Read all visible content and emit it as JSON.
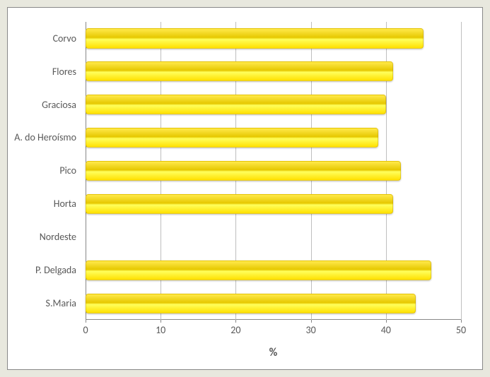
{
  "chart": {
    "type": "bar-horizontal",
    "background_color": "#ffffff",
    "outer_background": "#e8e8de",
    "grid_color": "#bfbfbf",
    "axis_color": "#888888",
    "label_color": "#595959",
    "tick_fontsize": 14,
    "xlabel": "%",
    "xlabel_fontsize": 16,
    "xlim": [
      0,
      50
    ],
    "xtick_step": 10,
    "xticks": [
      0,
      10,
      20,
      30,
      40,
      50
    ],
    "bar_gradient": [
      "#ffe94a",
      "#e6c800",
      "#ffff5c",
      "#ffe000"
    ],
    "bar_width": 0.6,
    "categories": [
      "Corvo",
      "Flores",
      "Graciosa",
      "A. do Heroísmo",
      "Pico",
      "Horta",
      "Nordeste",
      "P. Delgada",
      "S.Maria"
    ],
    "values": [
      45,
      41,
      40,
      39,
      42,
      41,
      0,
      46,
      44
    ]
  }
}
